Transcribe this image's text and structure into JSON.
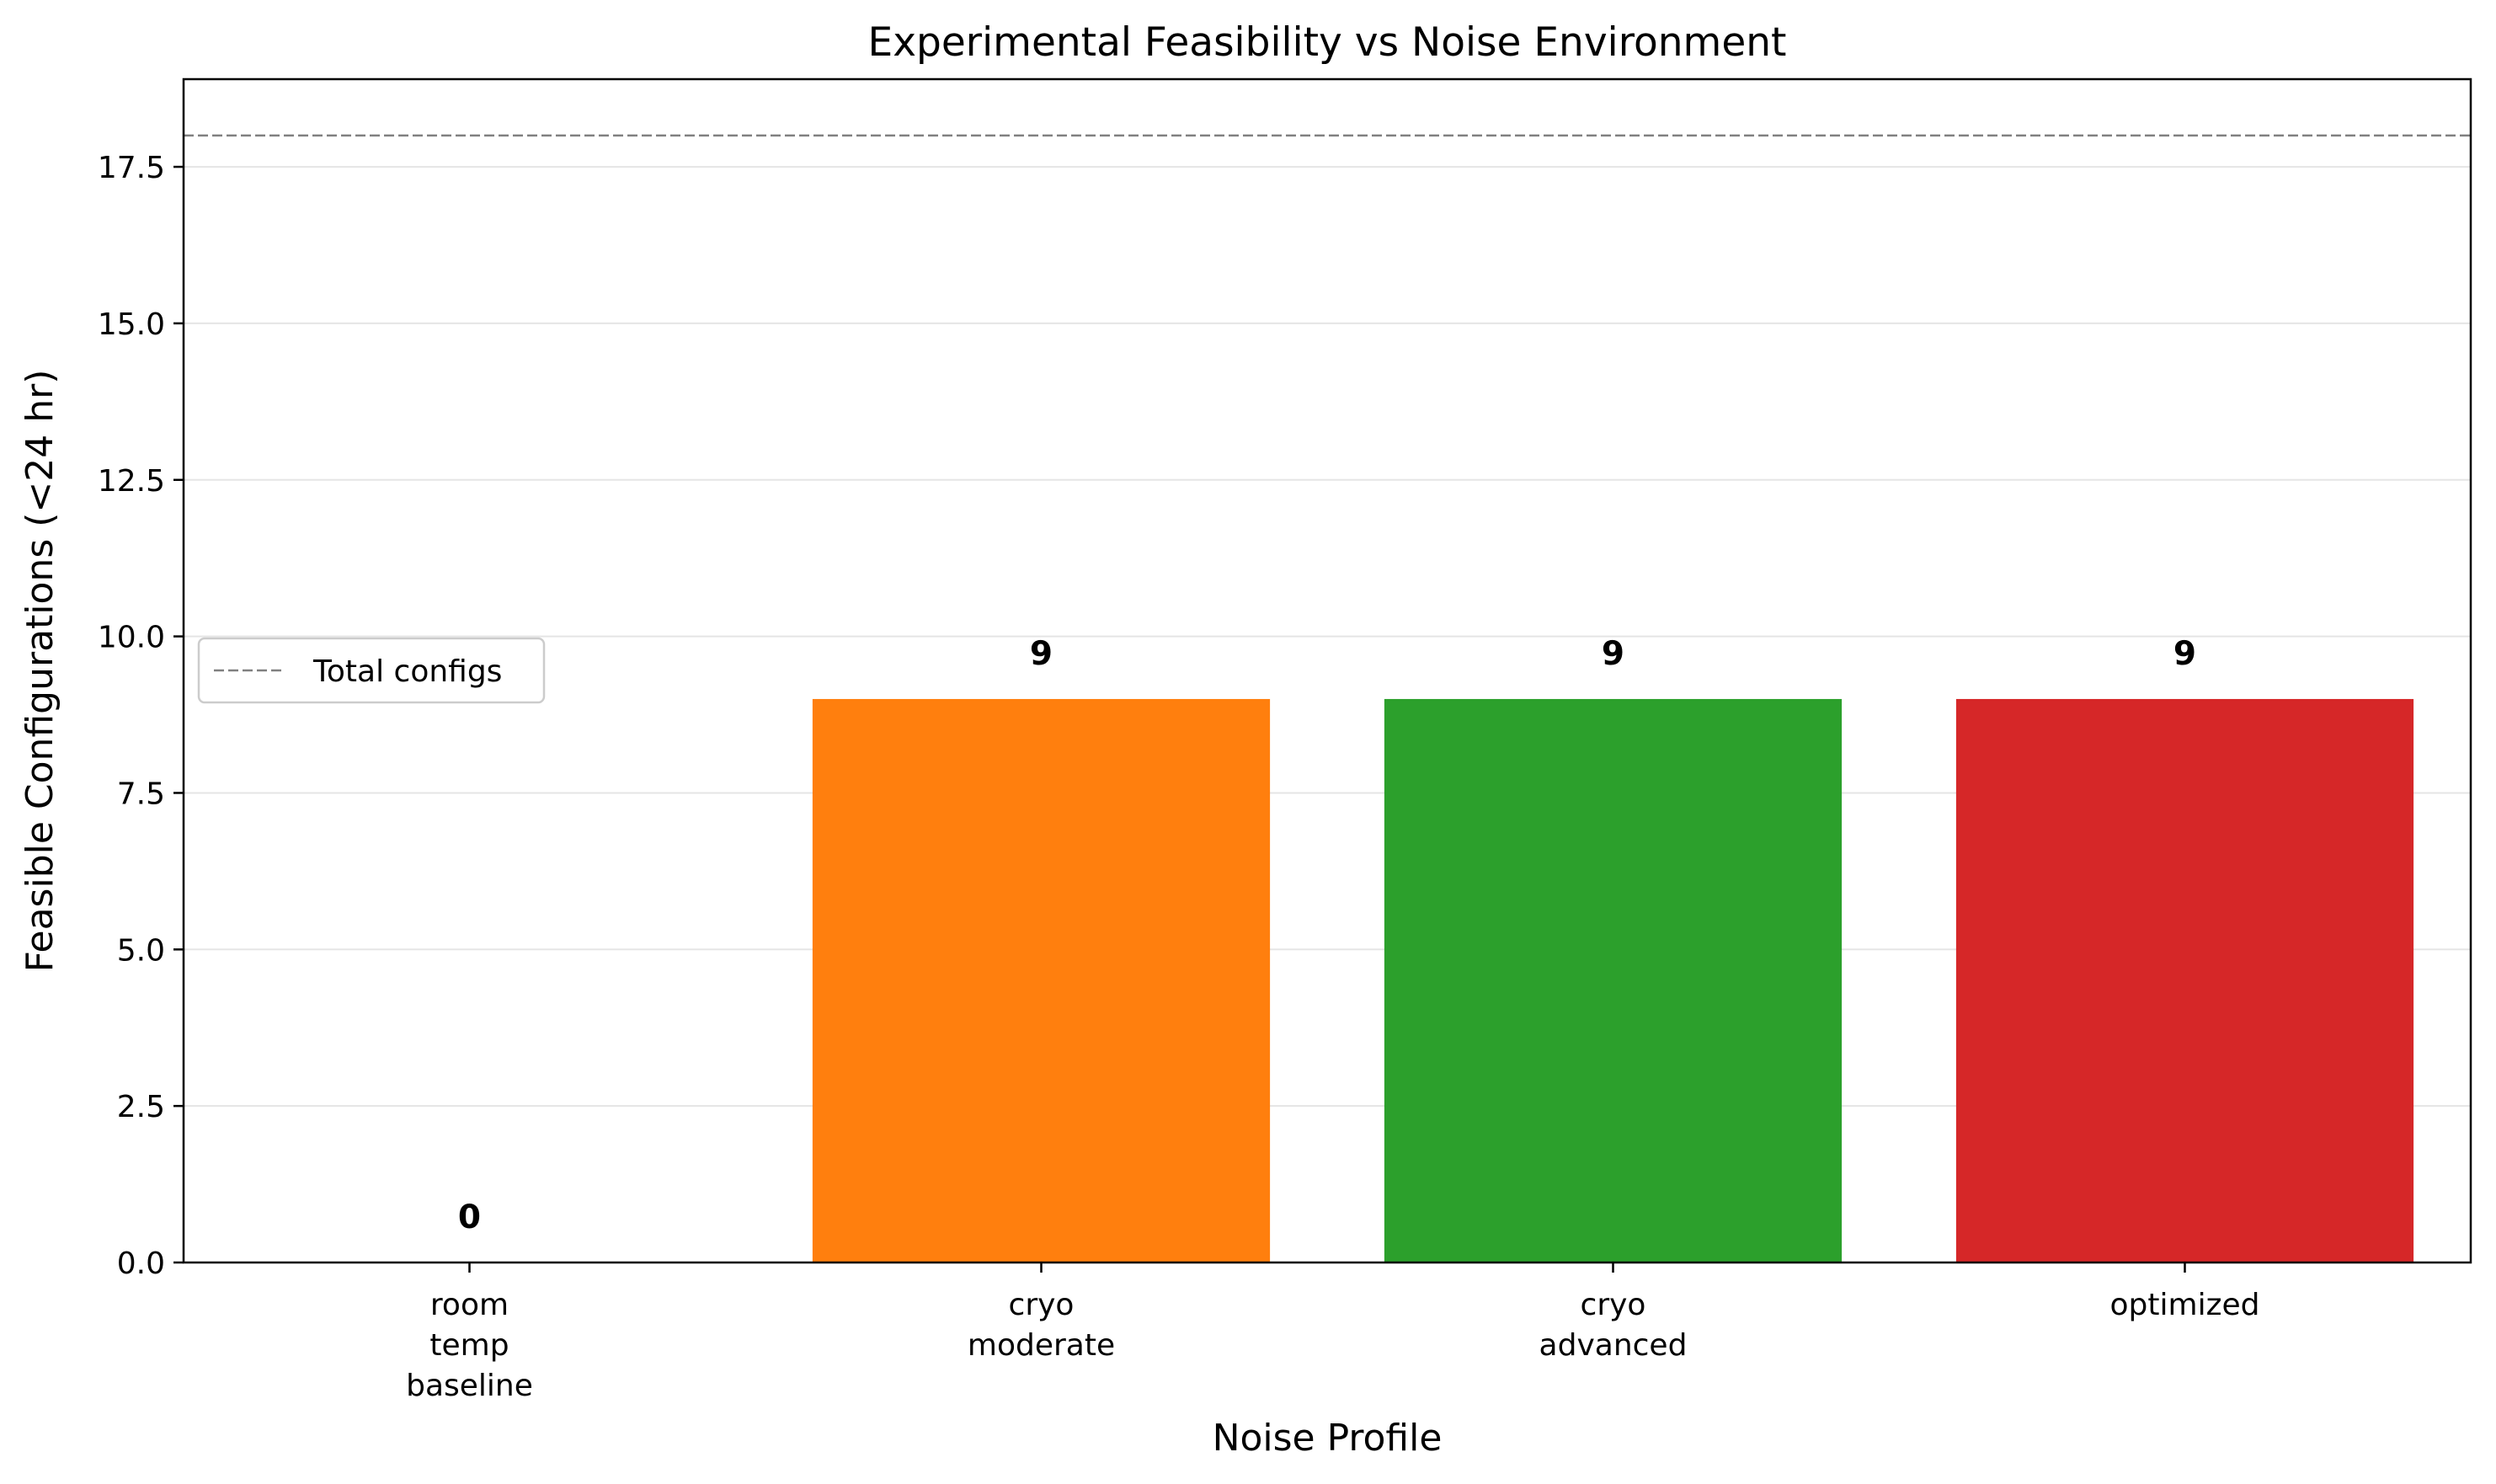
{
  "chart_data": {
    "type": "bar",
    "title": "Experimental Feasibility vs Noise Environment",
    "xlabel": "Noise Profile",
    "ylabel": "Feasible Configurations (<24 hr)",
    "categories": [
      [
        "room",
        "temp",
        "baseline"
      ],
      [
        "cryo",
        "moderate"
      ],
      [
        "cryo",
        "advanced"
      ],
      [
        "optimized"
      ]
    ],
    "values": [
      0,
      9,
      9,
      9
    ],
    "data_labels": [
      "0",
      "9",
      "9",
      "9"
    ],
    "colors": [
      "#1f77b4",
      "#ff7f0e",
      "#2ca02c",
      "#d62728"
    ],
    "ylim": [
      0,
      18.9
    ],
    "yticks": [
      0,
      2.5,
      5,
      7.5,
      10,
      12.5,
      15,
      17.5
    ],
    "ytick_labels": [
      "0.0",
      "2.5",
      "5.0",
      "7.5",
      "10.0",
      "12.5",
      "15.0",
      "17.5"
    ],
    "grid": "y",
    "reference_line": {
      "value": 18,
      "label": "Total configs",
      "color": "#808080",
      "style": "dashed"
    },
    "legend": {
      "placement": "center-left",
      "entries": [
        "Total configs"
      ]
    }
  }
}
